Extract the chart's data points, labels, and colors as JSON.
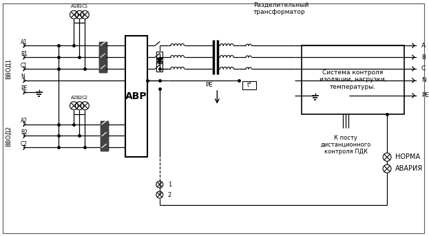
{
  "background_color": "#ffffff",
  "line_color": "#000000",
  "fig_width": 6.23,
  "fig_height": 3.43,
  "dpi": 100,
  "labels": {
    "vvod1": "ВВОД1",
    "vvod2": "ВВОД2",
    "avr": "АВР",
    "transformer": "Разделительный\nтрансформатор",
    "sistema": "Система контроля\nизоляции, нагрузки,\nтемпературы.",
    "k_postu": "К посту\nдистанционного\nконтроля ПДК",
    "norma": "НОРМА",
    "avariya": "АВАРИЯ",
    "pe_arrow": "PE",
    "num1": "1",
    "num2": "2",
    "t_label": "t°",
    "fuse1_a": "A1",
    "fuse1_b": "B1",
    "fuse1_c": "C1",
    "fuse2_a": "A2",
    "fuse2_b": "B2",
    "fuse2_c": "C2",
    "in_a1": "A1",
    "in_b1": "B1",
    "in_c1": "C1",
    "in_n": "N",
    "in_pe": "PE",
    "in_a2": "A2",
    "in_b2": "B2",
    "in_c2": "C2",
    "out_a": "A",
    "out_b": "B",
    "out_c": "C",
    "out_n": "N",
    "out_pe": "PE"
  }
}
